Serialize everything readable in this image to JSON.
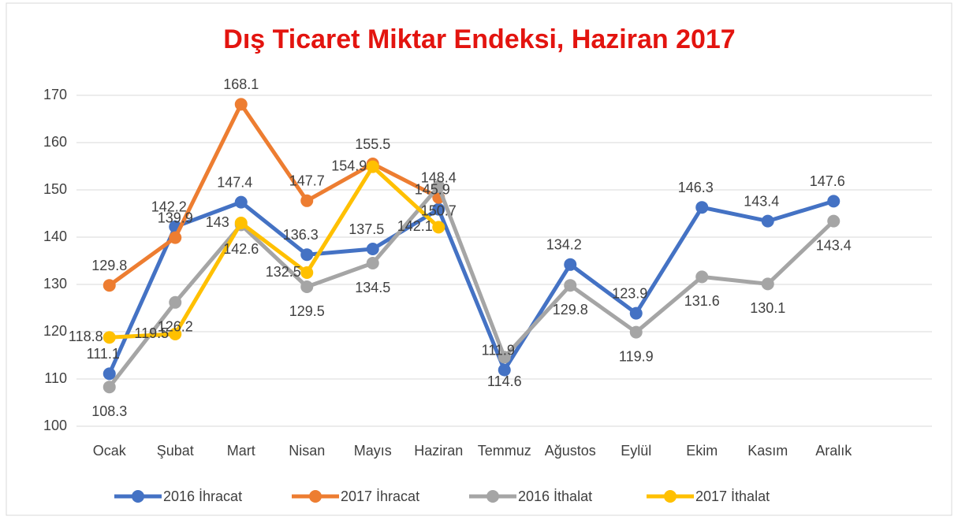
{
  "chart_data": {
    "type": "line",
    "title": "Dış Ticaret Miktar Endeksi, Haziran 2017",
    "categories": [
      "Ocak",
      "Şubat",
      "Mart",
      "Nisan",
      "Mayıs",
      "Haziran",
      "Temmuz",
      "Ağustos",
      "Eylül",
      "Ekim",
      "Kasım",
      "Aralık"
    ],
    "series": [
      {
        "name": "2016 İhracat",
        "color": "#4472c4",
        "values": [
          111.1,
          142.2,
          147.4,
          136.3,
          137.5,
          145.9,
          111.9,
          134.2,
          123.9,
          146.3,
          143.4,
          147.6
        ]
      },
      {
        "name": "2017 İhracat",
        "color": "#ed7d31",
        "values": [
          129.8,
          139.9,
          168.1,
          147.7,
          155.5,
          148.4,
          null,
          null,
          null,
          null,
          null,
          null
        ]
      },
      {
        "name": "2016 İthalat",
        "color": "#a5a5a5",
        "values": [
          108.3,
          126.2,
          142.6,
          129.5,
          134.5,
          150.7,
          114.6,
          129.8,
          119.9,
          131.6,
          130.1,
          143.4
        ]
      },
      {
        "name": "2017 İthalat",
        "color": "#ffc000",
        "values": [
          118.8,
          119.5,
          143,
          132.5,
          154.9,
          142.1,
          null,
          null,
          null,
          null,
          null,
          null
        ]
      }
    ],
    "ylim": [
      100,
      170
    ],
    "yticks": [
      100,
      110,
      120,
      130,
      140,
      150,
      160,
      170
    ],
    "grid": true,
    "legend": "bottom"
  }
}
